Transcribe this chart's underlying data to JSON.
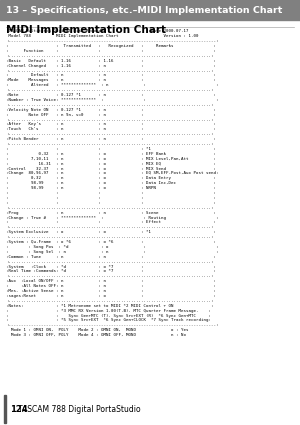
{
  "page_header": "13 – Specifications, etc.–MIDI Implementation Chart",
  "section_title": "MIDI Implementation Chart",
  "page_footer_num": "124",
  "page_footer_text": " TASCAM 788 Digital PortaStudio",
  "header_line1": " TASCAM Multitrack Digital Disk Recorder                  Date:2000.07.17",
  "header_line2": " Model 788          MIDI Implementation Chart                  Version : 1.00",
  "chart_lines": [
    ":                   :  Transmitted   :   Recognized   :     Remarks                :",
    ":      Function     :                :                :                            :",
    ":.................................................................................:",
    ":Basic   Default    : 1-16           : 1-16           :                            :",
    ":Channel Changed    : 1-16           : n              :                            :",
    ":.................................................................................:",
    ":         Default   : n              : n              :                            :",
    ":Mode    Messages   : n              : n              :                            :",
    ":         Altered   : **************  : n              :                            :",
    ":.................................................................................:",
    ":Note               : 0-127 *1       : n              :                            :",
    ":Number : True Voice: **************  :                :                            :",
    ":.................................................................................:",
    ":Velocity Note ON   : 0-127 *1       : n              :                            :",
    ":        Note OFF   : n 9n, v=0      : n              :                            :",
    ":.................................................................................:",
    ":After   Key's      : n              : n              :                            :",
    ":Touch   Ch's       : n              : n              :                            :",
    ":.................................................................................:",
    ":Pitch Bender       : n              : n              :                            :",
    ":.................................................................................:",
    ":                   :                :                : *1                         :",
    ":            0,32   : n              : o              : EFF Bank                   :",
    ":         7,10,11   : n              : o              : MIX Level,Pan,Att          :",
    ":            16-31  : n              : o              : MIX EQ                     :",
    ":Control    32-37   : n              : o              : MIX Send                   :",
    ":Change  80,96,97   : n              : o              : EQ SM,EFF-Post,Aux Post send:",
    ":         0,32      : n              : o              : Data Entry                 :",
    ":         98,99     : n              : o              : Data Inc,Dec               :",
    ":         98,99     : n              : o              : NRPN                       :",
    ":                   :                :                :                            :",
    ":                   :                :                :                            :",
    ":                   :                :                :                            :",
    ":.................................................................................:",
    ":Prog               : n              : n              : Scene                      :",
    ":Change : True #    : **************  :                : Routing                    :",
    ":                   :                :                : Effect                     :",
    ":.................................................................................:",
    ":System Exclusive   : o              : o              : *1                         :",
    ":.................................................................................:",
    ":System : Qu.Frame  : o *6           : o *6           :                            :",
    ":        : Song Pos  : *d             : o              :                            :",
    ":        : Song Sel  : n              : n              :                            :",
    ":Common : Tune      : n              : n              :                            :",
    ":.................................................................................:",
    ":System   :Clock    : *d             : o *7           :                            :",
    ":Real Time :Commands: *d             : o *7           :                            :",
    ":.................................................................................:",
    ":Aux  :Local ON/OFF : n              : n              :                            :",
    ":     :All Notes OFF: n              : n              :                            :",
    ":Mes- :Active Sense : n              : n              :                            :",
    ":sages:Reset        : n              : o              :                            :",
    ":.................................................................................:",
    ":Notes:             : *1 Metronome set to MIDI *2 MIDI Control + ON               :",
    ":                   : *3 MMC RX Version 1.00(T.B). MTC Quarter Frame Message.    :",
    ":                   :    Sync Gen+MTC (T). Sync Src+EXT (R)  *6 Sync Gen+MTC     :",
    ":                   : *5 Sync Src+EXT  *6 Sync Gen+CLOCK  *7 Sync Track recording:"
  ],
  "mode_legend1": "  Mode 1 : OMNI ON,  POLY    Mode 2 : OMNI ON,  MONO              o : Yes",
  "mode_legend2": "  Mode 3 : OMNI OFF, POLY    Mode 4 : OMNI OFF, MONO              n : No",
  "border_top": ":....................................................................................:",
  "border_solid": ":===================================================================================:",
  "bg_header": "#808080",
  "bg_white": "#ffffff",
  "text_color": "#000000",
  "header_text_color": "#ffffff"
}
